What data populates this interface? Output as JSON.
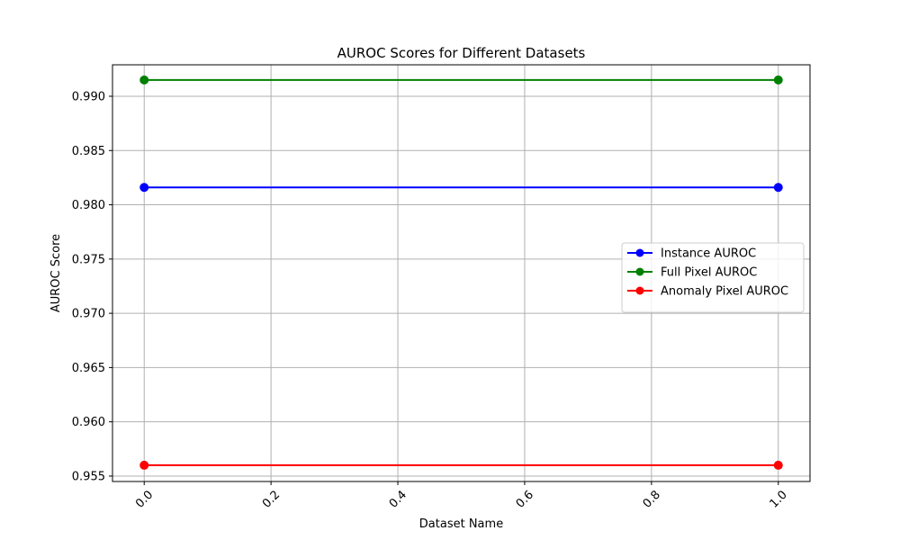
{
  "chart_data": {
    "type": "line",
    "title": "AUROC Scores for Different Datasets",
    "xlabel": "Dataset Name",
    "ylabel": "AUROC Score",
    "x": [
      0,
      1
    ],
    "xlim": [
      -0.05,
      1.05
    ],
    "ylim": [
      0.9545,
      0.9929
    ],
    "xticks": [
      0.0,
      0.2,
      0.4,
      0.6,
      0.8,
      1.0
    ],
    "xtick_labels": [
      "0.0",
      "0.2",
      "0.4",
      "0.6",
      "0.8",
      "1.0"
    ],
    "yticks": [
      0.955,
      0.96,
      0.965,
      0.97,
      0.975,
      0.98,
      0.985,
      0.99
    ],
    "ytick_labels": [
      "0.955",
      "0.960",
      "0.965",
      "0.970",
      "0.975",
      "0.980",
      "0.985",
      "0.990"
    ],
    "xtick_rotation": "45 degrees",
    "grid": true,
    "legend_position": "center-right",
    "series": [
      {
        "name": "Instance AUROC",
        "color": "#0000ff",
        "marker": "circle",
        "values": [
          0.9816,
          0.9816
        ]
      },
      {
        "name": "Full Pixel AUROC",
        "color": "#008000",
        "marker": "circle",
        "values": [
          0.9915,
          0.9915
        ]
      },
      {
        "name": "Anomaly Pixel AUROC",
        "color": "#ff0000",
        "marker": "circle",
        "values": [
          0.956,
          0.956
        ]
      }
    ]
  }
}
